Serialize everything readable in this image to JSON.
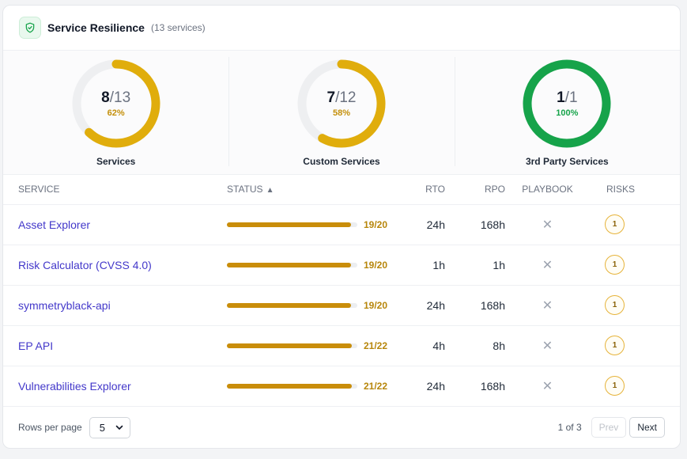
{
  "header": {
    "title": "Service Resilience",
    "count": "(13 services)"
  },
  "stats": [
    {
      "num": "8",
      "den": "/13",
      "pct": "62%",
      "fraction": 0.62,
      "label": "Services",
      "color": "#e0ad0c",
      "pct_color": "#c48f0a"
    },
    {
      "num": "7",
      "den": "/12",
      "pct": "58%",
      "fraction": 0.58,
      "label": "Custom Services",
      "color": "#e0ad0c",
      "pct_color": "#c48f0a"
    },
    {
      "num": "1",
      "den": "/1",
      "pct": "100%",
      "fraction": 1.0,
      "label": "3rd Party Services",
      "color": "#16a34a",
      "pct_color": "#16a34a"
    }
  ],
  "table": {
    "headers": {
      "service": "SERVICE",
      "status": "STATUS",
      "rto": "RTO",
      "rpo": "RPO",
      "playbook": "PLAYBOOK",
      "risks": "RISKS"
    },
    "sort_icon": "▲",
    "rows": [
      {
        "service": "Asset Explorer",
        "score": "19/20",
        "fraction": 0.95,
        "rto": "24h",
        "rpo": "168h",
        "playbook": "✕",
        "risks": "1"
      },
      {
        "service": "Risk Calculator (CVSS 4.0)",
        "score": "19/20",
        "fraction": 0.95,
        "rto": "1h",
        "rpo": "1h",
        "playbook": "✕",
        "risks": "1"
      },
      {
        "service": "symmetryblack-api",
        "score": "19/20",
        "fraction": 0.95,
        "rto": "24h",
        "rpo": "168h",
        "playbook": "✕",
        "risks": "1"
      },
      {
        "service": "EP API",
        "score": "21/22",
        "fraction": 0.955,
        "rto": "4h",
        "rpo": "8h",
        "playbook": "✕",
        "risks": "1"
      },
      {
        "service": "Vulnerabilities Explorer",
        "score": "21/22",
        "fraction": 0.955,
        "rto": "24h",
        "rpo": "168h",
        "playbook": "✕",
        "risks": "1"
      }
    ]
  },
  "footer": {
    "rows_label": "Rows per page",
    "rows_value": "5",
    "page_info": "1 of 3",
    "prev": "Prev",
    "next": "Next"
  },
  "icons": {
    "header": "shield-check-icon",
    "select": "chevron-down-icon"
  }
}
